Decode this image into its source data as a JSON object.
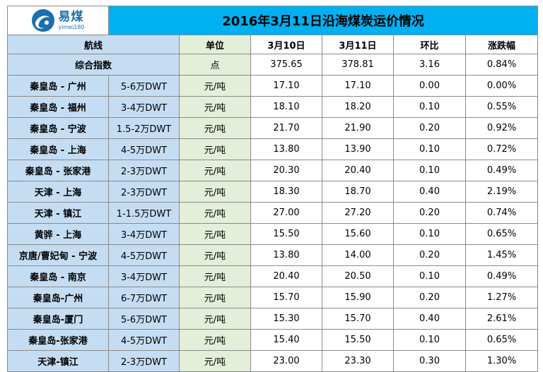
{
  "logo": {
    "cn": "易煤",
    "en": "yimei180"
  },
  "title": "2016年3月11日沿海煤炭运价情况",
  "headers": {
    "route": "航线",
    "unit": "单位",
    "d1": "3月10日",
    "d2": "3月11日",
    "hb": "环比",
    "zdf": "涨跌幅"
  },
  "index_row": {
    "label": "综合指数",
    "unit": "点",
    "d1": "375.65",
    "d2": "378.81",
    "hb": "3.16",
    "zdf": "0.84%"
  },
  "rows": [
    {
      "route": "秦皇岛 - 广州",
      "ship": "5-6万DWT",
      "unit": "元/吨",
      "d1": "17.10",
      "d2": "17.10",
      "hb": "0.00",
      "zdf": "0.00%"
    },
    {
      "route": "秦皇岛 - 福州",
      "ship": "3-4万DWT",
      "unit": "元/吨",
      "d1": "18.10",
      "d2": "18.20",
      "hb": "0.10",
      "zdf": "0.55%"
    },
    {
      "route": "秦皇岛 - 宁波",
      "ship": "1.5-2万DWT",
      "unit": "元/吨",
      "d1": "21.70",
      "d2": "21.90",
      "hb": "0.20",
      "zdf": "0.92%"
    },
    {
      "route": "秦皇岛 - 上海",
      "ship": "4-5万DWT",
      "unit": "元/吨",
      "d1": "13.80",
      "d2": "13.90",
      "hb": "0.10",
      "zdf": "0.72%"
    },
    {
      "route": "秦皇岛 - 张家港",
      "ship": "2-3万DWT",
      "unit": "元/吨",
      "d1": "20.30",
      "d2": "20.40",
      "hb": "0.10",
      "zdf": "0.49%"
    },
    {
      "route": "天津 - 上海",
      "ship": "2-3万DWT",
      "unit": "元/吨",
      "d1": "18.30",
      "d2": "18.70",
      "hb": "0.40",
      "zdf": "2.19%"
    },
    {
      "route": "天津 - 镇江",
      "ship": "1-1.5万DWT",
      "unit": "元/吨",
      "d1": "27.00",
      "d2": "27.20",
      "hb": "0.20",
      "zdf": "0.74%"
    },
    {
      "route": "黄骅 - 上海",
      "ship": "3-4万DWT",
      "unit": "元/吨",
      "d1": "15.50",
      "d2": "15.60",
      "hb": "0.10",
      "zdf": "0.65%"
    },
    {
      "route": "京唐/曹妃甸 - 宁波",
      "ship": "4-5万DWT",
      "unit": "元/吨",
      "d1": "13.80",
      "d2": "14.00",
      "hb": "0.20",
      "zdf": "1.45%"
    },
    {
      "route": "秦皇岛 - 南京",
      "ship": "3-4万DWT",
      "unit": "元/吨",
      "d1": "20.40",
      "d2": "20.50",
      "hb": "0.10",
      "zdf": "0.49%"
    },
    {
      "route": "秦皇岛-广州",
      "ship": "6-7万DWT",
      "unit": "元/吨",
      "d1": "15.70",
      "d2": "15.90",
      "hb": "0.20",
      "zdf": "1.27%"
    },
    {
      "route": "秦皇岛-厦门",
      "ship": "5-6万DWT",
      "unit": "元/吨",
      "d1": "15.30",
      "d2": "15.70",
      "hb": "0.40",
      "zdf": "2.61%"
    },
    {
      "route": "秦皇岛-张家港",
      "ship": "4-5万DWT",
      "unit": "元/吨",
      "d1": "15.40",
      "d2": "15.50",
      "hb": "0.10",
      "zdf": "0.65%"
    },
    {
      "route": "天津-镇江",
      "ship": "2-3万DWT",
      "unit": "元/吨",
      "d1": "23.00",
      "d2": "23.30",
      "hb": "0.30",
      "zdf": "1.30%"
    }
  ]
}
